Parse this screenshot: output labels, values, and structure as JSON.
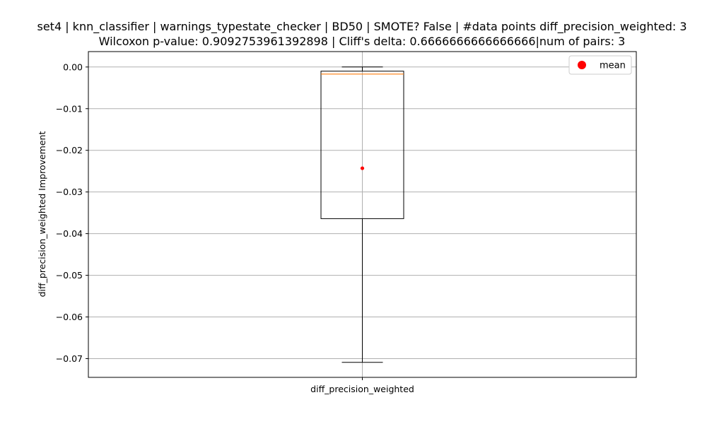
{
  "chart_data": {
    "type": "box",
    "title_line1": "set4 | knn_classifier | warnings_typestate_checker | BD50 | SMOTE? False | #data points diff_precision_weighted: 3",
    "title_line2": "Wilcoxon p-value: 0.9092753961392898 | Cliff's delta: 0.6666666666666666|num of pairs: 3",
    "ylabel": "diff_precision_weighted Improvement",
    "categories": [
      "diff_precision_weighted"
    ],
    "ylim": [
      -0.0745,
      0.0037
    ],
    "yticks": [
      0.0,
      -0.01,
      -0.02,
      -0.03,
      -0.04,
      -0.05,
      -0.06,
      -0.07
    ],
    "ytick_labels": [
      "0.00",
      "−0.01",
      "−0.02",
      "−0.03",
      "−0.04",
      "−0.05",
      "−0.06",
      "−0.07"
    ],
    "grid": true,
    "legend": {
      "placement": "top-right",
      "entries": [
        {
          "label": "mean",
          "color": "#ff0000"
        }
      ]
    },
    "boxes": [
      {
        "name": "diff_precision_weighted",
        "whisker_low": -0.0709,
        "q1": -0.0364,
        "median": -0.0017,
        "q3": -0.001,
        "whisker_high": 0.0,
        "mean": -0.0243
      }
    ],
    "colors": {
      "box": "#000000",
      "median": "#ff7f0e",
      "mean": "#ff0000",
      "grid": "#b0b0b0"
    }
  }
}
